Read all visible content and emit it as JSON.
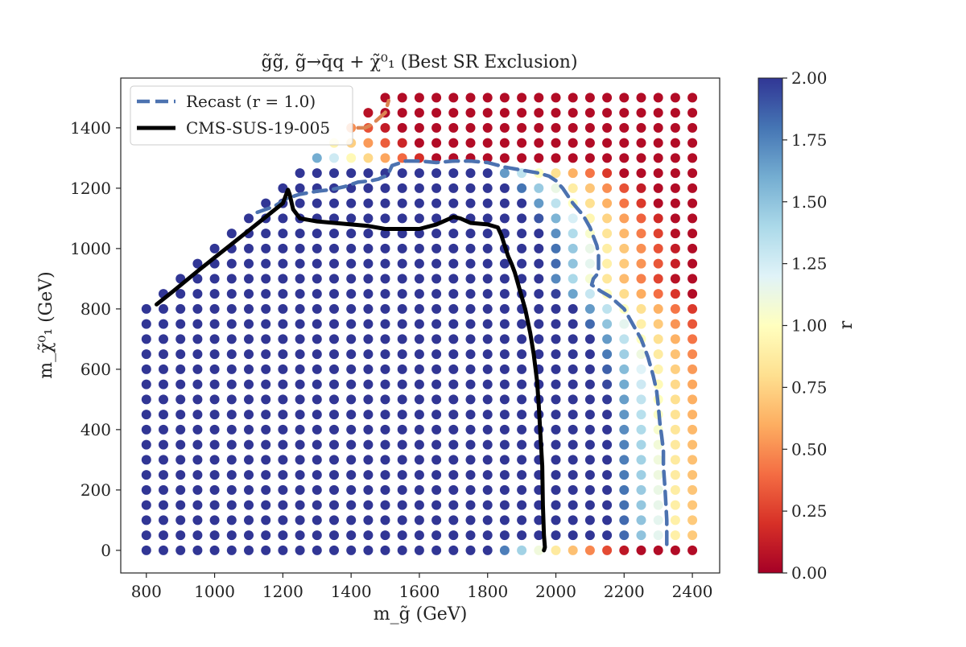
{
  "chart_data": {
    "type": "scatter",
    "title": "g̃g̃, g̃→q̄q + χ̃⁰₁ (Best SR Exclusion)",
    "xlabel": "m_g̃ (GeV)",
    "ylabel": "m_χ̃⁰₁ (GeV)",
    "xlim": [
      725,
      2480
    ],
    "ylim": [
      -75,
      1565
    ],
    "xticks": [
      800,
      1000,
      1200,
      1400,
      1600,
      1800,
      2000,
      2200,
      2400
    ],
    "yticks": [
      0,
      200,
      400,
      600,
      800,
      1000,
      1200,
      1400
    ],
    "xtick_labels": [
      "800",
      "1000",
      "1200",
      "1400",
      "1600",
      "1800",
      "2000",
      "2200",
      "2400"
    ],
    "ytick_labels": [
      "0",
      "200",
      "400",
      "600",
      "800",
      "1000",
      "1200",
      "1400"
    ],
    "grid": false,
    "legend_position": "top-left",
    "colorbar": {
      "label": "r",
      "min": 0.0,
      "max": 2.0,
      "ticks": [
        0.0,
        0.25,
        0.5,
        0.75,
        1.0,
        1.25,
        1.5,
        1.75,
        2.0
      ],
      "tick_labels": [
        "0.00",
        "0.25",
        "0.50",
        "0.75",
        "1.00",
        "1.25",
        "1.50",
        "1.75",
        "2.00"
      ],
      "colormap": "RdYlBu",
      "stops": [
        "#a50026",
        "#d73027",
        "#f46d43",
        "#fdae61",
        "#fee090",
        "#ffffbf",
        "#e0f3f8",
        "#abd9e9",
        "#74add1",
        "#4575b4",
        "#313695"
      ]
    },
    "scan_grid": {
      "x_start": 800,
      "x_end": 2400,
      "x_step": 50,
      "y_start": 0,
      "y_end": 1500,
      "y_step": 50,
      "kinematic_limit": "y <= x"
    },
    "series": [
      {
        "name": "Recast (r = 1.0)",
        "style": "dashed",
        "color": "#4c72b0",
        "x": [
          1125,
          1175,
          1210,
          1225,
          1235,
          1250,
          1275,
          1300,
          1340,
          1380,
          1420,
          1460,
          1480,
          1500,
          1510,
          1520,
          1560,
          1600,
          1650,
          1700,
          1750,
          1800,
          1850,
          1900,
          1950,
          1980,
          2000,
          2020,
          2050,
          2080,
          2100,
          2110,
          2120,
          2125,
          2125,
          2110,
          2105,
          2130,
          2160,
          2180,
          2200,
          2220,
          2250,
          2270,
          2285,
          2295,
          2300,
          2305,
          2310,
          2315,
          2315,
          2320,
          2325,
          2325
        ],
        "y": [
          1120,
          1140,
          1165,
          1170,
          1175,
          1180,
          1185,
          1190,
          1195,
          1205,
          1220,
          1225,
          1230,
          1240,
          1250,
          1275,
          1290,
          1290,
          1285,
          1290,
          1290,
          1285,
          1270,
          1260,
          1250,
          1240,
          1225,
          1200,
          1150,
          1110,
          1070,
          1040,
          1010,
          980,
          920,
          900,
          880,
          860,
          840,
          820,
          800,
          760,
          700,
          640,
          580,
          530,
          480,
          420,
          380,
          330,
          280,
          200,
          100,
          20
        ]
      },
      {
        "name": "CMS-SUS-19-005",
        "style": "solid",
        "color": "#000000",
        "x": [
          830,
          880,
          950,
          1000,
          1050,
          1100,
          1150,
          1200,
          1215,
          1220,
          1230,
          1250,
          1300,
          1350,
          1400,
          1450,
          1500,
          1550,
          1600,
          1650,
          1680,
          1700,
          1720,
          1750,
          1800,
          1830,
          1840,
          1850,
          1860,
          1870,
          1880,
          1895,
          1910,
          1925,
          1935,
          1945,
          1950,
          1955,
          1960,
          1962,
          1965,
          1968,
          1965
        ],
        "y": [
          815,
          860,
          925,
          970,
          1015,
          1060,
          1105,
          1150,
          1195,
          1180,
          1130,
          1100,
          1090,
          1085,
          1080,
          1075,
          1065,
          1065,
          1065,
          1080,
          1095,
          1105,
          1100,
          1085,
          1080,
          1070,
          1045,
          1010,
          975,
          950,
          920,
          860,
          800,
          720,
          650,
          560,
          480,
          380,
          280,
          150,
          50,
          10,
          0
        ]
      },
      {
        "name": "",
        "style": "dashed",
        "color": "#dd8452",
        "x": [
          1420,
          1440,
          1460,
          1480,
          1500,
          1510
        ],
        "y": [
          1400,
          1400,
          1410,
          1430,
          1450,
          1490
        ]
      }
    ]
  }
}
